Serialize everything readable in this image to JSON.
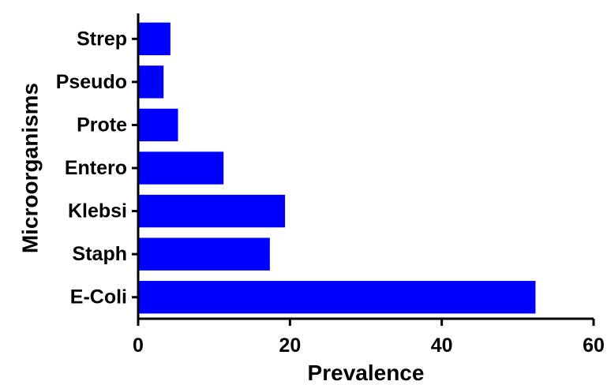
{
  "chart_data": {
    "type": "bar",
    "orientation": "horizontal",
    "categories": [
      "E-Coli",
      "Staph",
      "Klebsi",
      "Entero",
      "Prote",
      "Pseudo",
      "Strep"
    ],
    "values": [
      52.3,
      17.3,
      19.3,
      11.2,
      5.2,
      3.3,
      4.2
    ],
    "xlabel": "Prevalence",
    "ylabel": "Microorganisms",
    "xlim": [
      0,
      60
    ],
    "xticks": [
      0,
      20,
      40,
      60
    ],
    "grid": false,
    "legend": "none",
    "bar_color": "#0000FF"
  }
}
